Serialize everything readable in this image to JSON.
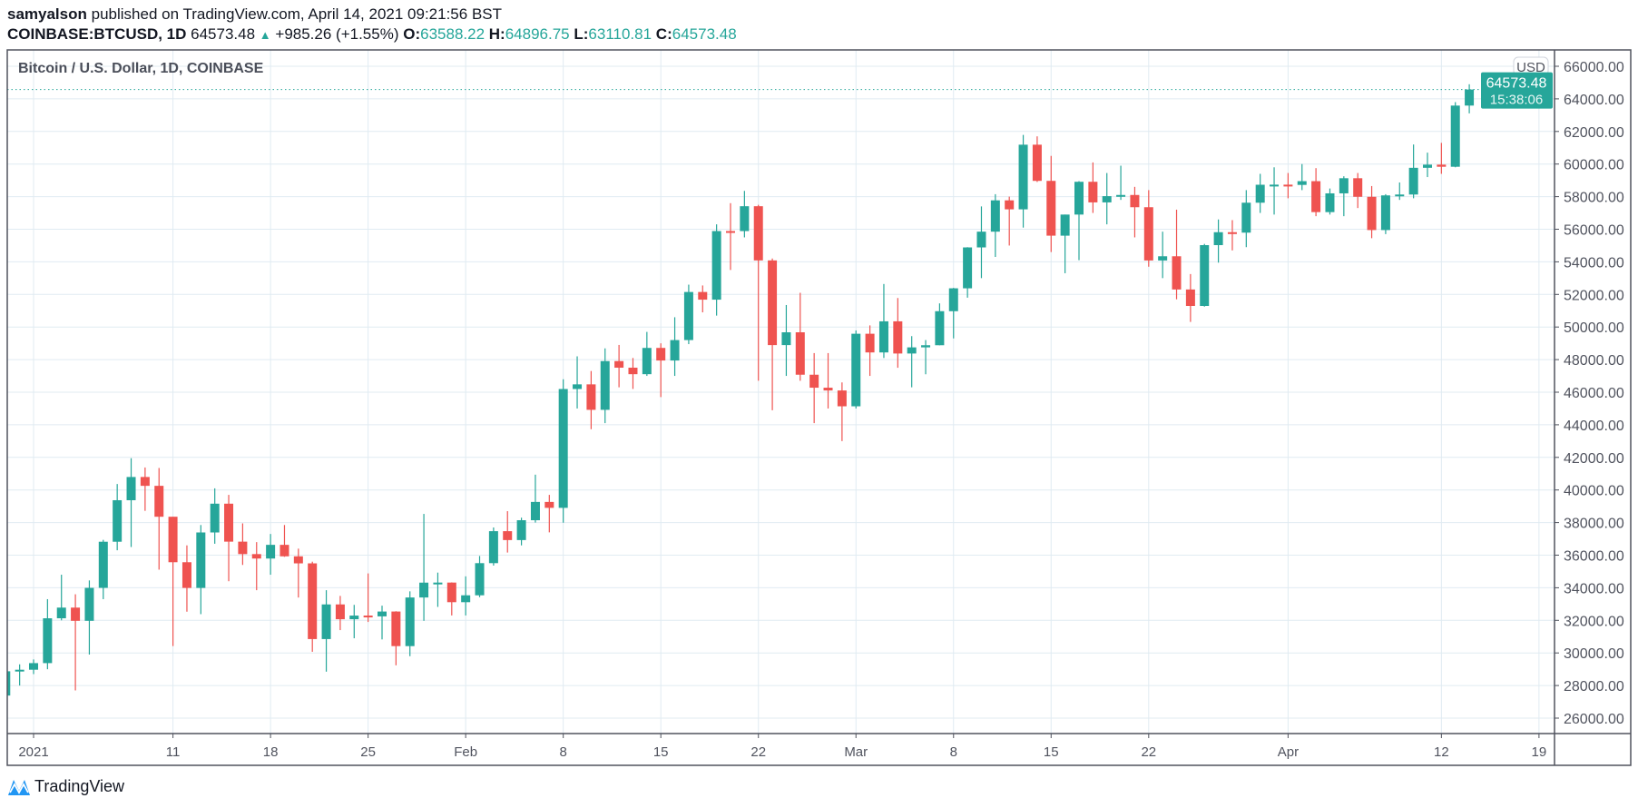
{
  "header": {
    "author": "samyalson",
    "published_text": "published on TradingView.com, April 14, 2021 09:21:56 BST",
    "symbol": "COINBASE:BTCUSD, 1D",
    "last": "64573.48",
    "change": "+985.26 (+1.55%)",
    "o_label": "O:",
    "o": "63588.22",
    "h_label": "H:",
    "h": "64896.75",
    "l_label": "L:",
    "l": "63110.81",
    "c_label": "C:",
    "c": "64573.48"
  },
  "chart_title": "Bitcoin / U.S. Dollar, 1D, COINBASE",
  "currency_badge": "USD",
  "last_price_label": {
    "price": "64573.48",
    "countdown": "15:38:06"
  },
  "footer": {
    "logo_text": "TradingView"
  },
  "colors": {
    "up": "#26a69a",
    "down": "#ef5350",
    "grid": "#e0ebf2",
    "axis": "#50535e"
  },
  "chart_data": {
    "type": "candlestick",
    "ylim": [
      25000,
      66700
    ],
    "grid": true,
    "y_ticks": [
      26000,
      28000,
      30000,
      32000,
      34000,
      36000,
      38000,
      40000,
      42000,
      44000,
      46000,
      48000,
      50000,
      52000,
      54000,
      56000,
      58000,
      60000,
      62000,
      64000,
      66000
    ],
    "y_tick_labels": [
      "26000.00",
      "28000.00",
      "30000.00",
      "32000.00",
      "34000.00",
      "36000.00",
      "38000.00",
      "40000.00",
      "42000.00",
      "44000.00",
      "46000.00",
      "48000.00",
      "50000.00",
      "52000.00",
      "54000.00",
      "56000.00",
      "58000.00",
      "60000.00",
      "62000.00",
      "64000.00",
      "66000.00"
    ],
    "x_ticks": [
      {
        "date": "2021-01-01",
        "label": "2021"
      },
      {
        "date": "2021-01-11",
        "label": "11"
      },
      {
        "date": "2021-01-18",
        "label": "18"
      },
      {
        "date": "2021-01-25",
        "label": "25"
      },
      {
        "date": "2021-02-01",
        "label": "Feb"
      },
      {
        "date": "2021-02-08",
        "label": "8"
      },
      {
        "date": "2021-02-15",
        "label": "15"
      },
      {
        "date": "2021-02-22",
        "label": "22"
      },
      {
        "date": "2021-03-01",
        "label": "Mar"
      },
      {
        "date": "2021-03-08",
        "label": "8"
      },
      {
        "date": "2021-03-15",
        "label": "15"
      },
      {
        "date": "2021-03-22",
        "label": "22"
      },
      {
        "date": "2021-04-01",
        "label": "Apr"
      },
      {
        "date": "2021-04-12",
        "label": "12"
      },
      {
        "date": "2021-04-19",
        "label": "19"
      }
    ],
    "columns": [
      "date",
      "open",
      "high",
      "low",
      "close"
    ],
    "candles": [
      [
        "2020-12-30",
        27385,
        28990,
        27320,
        28875
      ],
      [
        "2020-12-31",
        28875,
        29300,
        28000,
        28970
      ],
      [
        "2021-01-01",
        28970,
        29600,
        28700,
        29375
      ],
      [
        "2021-01-02",
        29375,
        33300,
        29000,
        32127
      ],
      [
        "2021-01-03",
        32127,
        34800,
        32000,
        32782
      ],
      [
        "2021-01-04",
        32782,
        33600,
        27700,
        31971
      ],
      [
        "2021-01-05",
        31971,
        34450,
        29900,
        33993
      ],
      [
        "2021-01-06",
        33993,
        36939,
        33300,
        36824
      ],
      [
        "2021-01-07",
        36824,
        40365,
        36300,
        39371
      ],
      [
        "2021-01-08",
        39371,
        41950,
        36500,
        40797
      ],
      [
        "2021-01-09",
        40797,
        41380,
        38720,
        40254
      ],
      [
        "2021-01-10",
        40254,
        41350,
        35111,
        38357
      ],
      [
        "2021-01-11",
        38357,
        38357,
        30420,
        35567
      ],
      [
        "2021-01-12",
        35567,
        36600,
        32531,
        33989
      ],
      [
        "2021-01-13",
        33989,
        37850,
        32380,
        37393
      ],
      [
        "2021-01-14",
        37393,
        40100,
        36700,
        39159
      ],
      [
        "2021-01-15",
        39159,
        39700,
        34400,
        36829
      ],
      [
        "2021-01-16",
        36829,
        37950,
        35400,
        36065
      ],
      [
        "2021-01-17",
        36065,
        36800,
        33850,
        35793
      ],
      [
        "2021-01-18",
        35793,
        37300,
        34800,
        36633
      ],
      [
        "2021-01-19",
        36633,
        37850,
        35900,
        35928
      ],
      [
        "2021-01-20",
        35928,
        36400,
        33400,
        35497
      ],
      [
        "2021-01-21",
        35497,
        35600,
        30071,
        30851
      ],
      [
        "2021-01-22",
        30851,
        33850,
        28850,
        32977
      ],
      [
        "2021-01-23",
        32977,
        33500,
        31400,
        32069
      ],
      [
        "2021-01-24",
        32069,
        32950,
        30900,
        32292
      ],
      [
        "2021-01-25",
        32292,
        34880,
        31900,
        32245
      ],
      [
        "2021-01-26",
        32245,
        32900,
        30830,
        32541
      ],
      [
        "2021-01-27",
        32541,
        32560,
        29241,
        30419
      ],
      [
        "2021-01-28",
        30419,
        33780,
        29800,
        33403
      ],
      [
        "2021-01-29",
        33403,
        38531,
        31970,
        34314
      ],
      [
        "2021-01-30",
        34314,
        34930,
        32825,
        34318
      ],
      [
        "2021-01-31",
        34318,
        34330,
        32300,
        33114
      ],
      [
        "2021-02-01",
        33114,
        34700,
        32300,
        33537
      ],
      [
        "2021-02-02",
        33537,
        35950,
        33420,
        35510
      ],
      [
        "2021-02-03",
        35510,
        37700,
        35360,
        37472
      ],
      [
        "2021-02-04",
        37472,
        38700,
        36160,
        36926
      ],
      [
        "2021-02-05",
        36926,
        38300,
        36600,
        38144
      ],
      [
        "2021-02-06",
        38144,
        40940,
        38000,
        39266
      ],
      [
        "2021-02-07",
        39266,
        39700,
        37400,
        38903
      ],
      [
        "2021-02-08",
        38903,
        46794,
        37990,
        46196
      ],
      [
        "2021-02-09",
        46196,
        48200,
        45000,
        46481
      ],
      [
        "2021-02-10",
        46481,
        47300,
        43730,
        44918
      ],
      [
        "2021-02-11",
        44918,
        48690,
        44100,
        47909
      ],
      [
        "2021-02-12",
        47909,
        48900,
        46300,
        47504
      ],
      [
        "2021-02-13",
        47504,
        48100,
        46200,
        47105
      ],
      [
        "2021-02-14",
        47105,
        49700,
        47000,
        48717
      ],
      [
        "2021-02-15",
        48717,
        49000,
        45700,
        47945
      ],
      [
        "2021-02-16",
        47945,
        50600,
        47000,
        49199
      ],
      [
        "2021-02-17",
        49199,
        52600,
        48950,
        52149
      ],
      [
        "2021-02-18",
        52149,
        52550,
        50900,
        51679
      ],
      [
        "2021-02-19",
        51679,
        56300,
        50700,
        55888
      ],
      [
        "2021-02-20",
        55888,
        57600,
        53500,
        55887
      ],
      [
        "2021-02-21",
        55887,
        58354,
        55500,
        57412
      ],
      [
        "2021-02-22",
        57412,
        57500,
        46700,
        54087
      ],
      [
        "2021-02-23",
        54087,
        54200,
        44892,
        48891
      ],
      [
        "2021-02-24",
        48891,
        51350,
        47000,
        49676
      ],
      [
        "2021-02-25",
        49676,
        52100,
        46700,
        47073
      ],
      [
        "2021-02-26",
        47073,
        48400,
        44100,
        46276
      ],
      [
        "2021-02-27",
        46276,
        48400,
        45000,
        46106
      ],
      [
        "2021-02-28",
        46106,
        46600,
        43000,
        45135
      ],
      [
        "2021-03-01",
        45135,
        49790,
        45000,
        49587
      ],
      [
        "2021-03-02",
        49587,
        50100,
        47000,
        48440
      ],
      [
        "2021-03-03",
        48440,
        52640,
        48100,
        50349
      ],
      [
        "2021-03-04",
        50349,
        51780,
        47500,
        48374
      ],
      [
        "2021-03-05",
        48374,
        49440,
        46300,
        48751
      ],
      [
        "2021-03-06",
        48751,
        49200,
        47100,
        48882
      ],
      [
        "2021-03-07",
        48882,
        51450,
        48880,
        50971
      ],
      [
        "2021-03-08",
        50971,
        52400,
        49300,
        52375
      ],
      [
        "2021-03-09",
        52375,
        54900,
        51800,
        54884
      ],
      [
        "2021-03-10",
        54884,
        57400,
        53000,
        55851
      ],
      [
        "2021-03-11",
        55851,
        58150,
        54300,
        57773
      ],
      [
        "2021-03-12",
        57773,
        58000,
        55000,
        57221
      ],
      [
        "2021-03-13",
        57221,
        61788,
        56100,
        61188
      ],
      [
        "2021-03-14",
        61188,
        61700,
        58900,
        58968
      ],
      [
        "2021-03-15",
        58968,
        60500,
        54600,
        55605
      ],
      [
        "2021-03-16",
        55605,
        56900,
        53300,
        56900
      ],
      [
        "2021-03-17",
        56900,
        58950,
        54100,
        58912
      ],
      [
        "2021-03-18",
        58912,
        60100,
        57000,
        57648
      ],
      [
        "2021-03-19",
        57648,
        59450,
        56300,
        58030
      ],
      [
        "2021-03-20",
        58030,
        59900,
        57800,
        58102
      ],
      [
        "2021-03-21",
        58102,
        58600,
        55500,
        57351
      ],
      [
        "2021-03-22",
        57351,
        58400,
        53700,
        54083
      ],
      [
        "2021-03-23",
        54083,
        55850,
        53000,
        54341
      ],
      [
        "2021-03-24",
        54341,
        57200,
        51700,
        52303
      ],
      [
        "2021-03-25",
        52303,
        53250,
        50313,
        51293
      ],
      [
        "2021-03-26",
        51293,
        55100,
        51250,
        55025
      ],
      [
        "2021-03-27",
        55025,
        56600,
        53950,
        55818
      ],
      [
        "2021-03-28",
        55818,
        56560,
        54700,
        55791
      ],
      [
        "2021-03-29",
        55791,
        58400,
        54900,
        57628
      ],
      [
        "2021-03-30",
        57628,
        59400,
        57000,
        58730
      ],
      [
        "2021-03-31",
        58730,
        59800,
        56900,
        58736
      ],
      [
        "2021-04-01",
        58736,
        59450,
        57900,
        58720
      ],
      [
        "2021-04-02",
        58720,
        60000,
        58400,
        58950
      ],
      [
        "2021-04-03",
        58950,
        59750,
        56800,
        57051
      ],
      [
        "2021-04-04",
        57051,
        58500,
        56900,
        58202
      ],
      [
        "2021-04-05",
        58202,
        59250,
        56800,
        59130
      ],
      [
        "2021-04-06",
        59130,
        59450,
        57300,
        57991
      ],
      [
        "2021-04-07",
        57991,
        58650,
        55450,
        55950
      ],
      [
        "2021-04-08",
        55950,
        58150,
        55700,
        58077
      ],
      [
        "2021-04-09",
        58077,
        58870,
        57800,
        58130
      ],
      [
        "2021-04-10",
        58130,
        61200,
        57900,
        59770
      ],
      [
        "2021-04-11",
        59770,
        60700,
        59200,
        59964
      ],
      [
        "2021-04-12",
        59964,
        61300,
        59400,
        59834
      ],
      [
        "2021-04-13",
        59834,
        63800,
        59800,
        63588
      ],
      [
        "2021-04-14",
        63588.22,
        64896.75,
        63110.81,
        64573.48
      ]
    ]
  }
}
